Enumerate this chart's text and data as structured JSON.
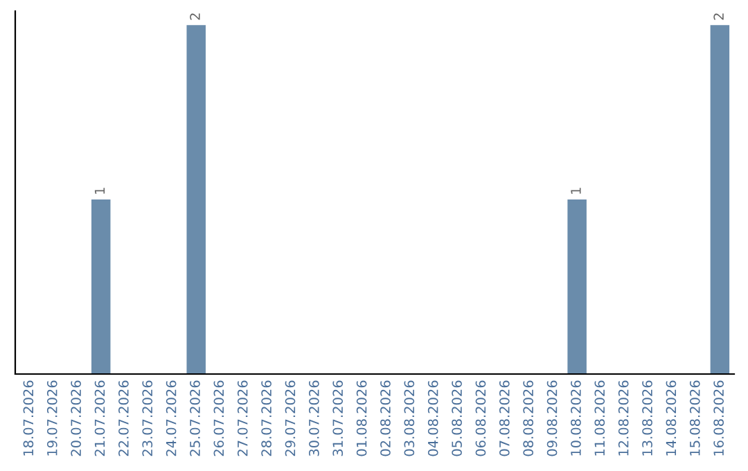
{
  "chart_data": {
    "type": "bar",
    "categories": [
      "18.07.2026",
      "19.07.2026",
      "20.07.2026",
      "21.07.2026",
      "22.07.2026",
      "23.07.2026",
      "24.07.2026",
      "25.07.2026",
      "26.07.2026",
      "27.07.2026",
      "28.07.2026",
      "29.07.2026",
      "30.07.2026",
      "31.07.2026",
      "01.08.2026",
      "02.08.2026",
      "03.08.2026",
      "04.08.2026",
      "05.08.2026",
      "06.08.2026",
      "07.08.2026",
      "08.08.2026",
      "09.08.2026",
      "10.08.2026",
      "11.08.2026",
      "12.08.2026",
      "13.08.2026",
      "14.08.2026",
      "15.08.2026",
      "16.08.2026"
    ],
    "values": [
      0,
      0,
      0,
      1,
      0,
      0,
      0,
      2,
      0,
      0,
      0,
      0,
      0,
      0,
      0,
      0,
      0,
      0,
      0,
      0,
      0,
      0,
      0,
      1,
      0,
      0,
      0,
      0,
      0,
      2
    ],
    "color": "#6a8cab",
    "value_labels": [
      null,
      null,
      null,
      "1",
      null,
      null,
      null,
      "2",
      null,
      null,
      null,
      null,
      null,
      null,
      null,
      null,
      null,
      null,
      null,
      null,
      null,
      null,
      null,
      "1",
      null,
      null,
      null,
      null,
      null,
      "2"
    ],
    "grid": false,
    "legend": false
  }
}
